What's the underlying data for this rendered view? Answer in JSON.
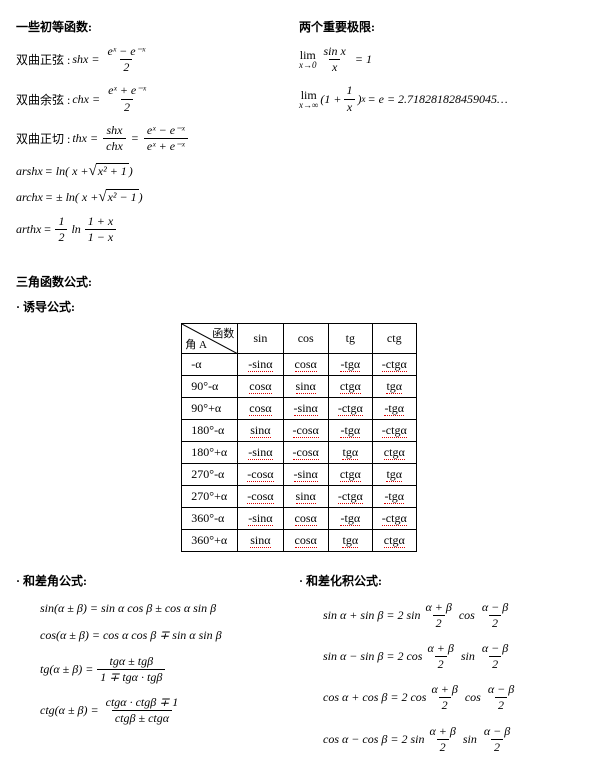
{
  "top": {
    "left_heading": "一些初等函数:",
    "right_heading": "两个重要极限:",
    "left_formulas": {
      "l1_label": "双曲正弦 : ",
      "l1_lhs": "shx",
      "l1_num": "eˣ − e⁻ˣ",
      "l1_den": "2",
      "l2_label": "双曲余弦 : ",
      "l2_lhs": "chx",
      "l2_num": "eˣ + e⁻ˣ",
      "l2_den": "2",
      "l3_label": "双曲正切 : ",
      "l3_lhs": "thx",
      "l3_num1": "shx",
      "l3_den1": "chx",
      "l3_num2": "eˣ − e⁻ˣ",
      "l3_den2": "eˣ + e⁻ˣ",
      "l4_lhs": "arshx",
      "l4_rhs_a": "= ln( x +",
      "l4_rad": "x² + 1",
      "l4_rhs_b": ")",
      "l5_lhs": "archx",
      "l5_rhs_a": "= ± ln( x +",
      "l5_rad": "x² − 1",
      "l5_rhs_b": ")",
      "l6_lhs": "arthx",
      "l6_eq": "=",
      "l6_f1num": "1",
      "l6_f1den": "2",
      "l6_mid": "ln",
      "l6_f2num": "1 + x",
      "l6_f2den": "1 − x"
    },
    "right_formulas": {
      "r1_lim": "lim",
      "r1_sub": "x→0",
      "r1_num": "sin x",
      "r1_den": "x",
      "r1_eq": "= 1",
      "r2_lim": "lim",
      "r2_sub": "x→∞",
      "r2_a": "(1 +",
      "r2_num": "1",
      "r2_den": "x",
      "r2_b": ")",
      "r2_sup": "x",
      "r2_eq": "= e = 2.718281828459045…"
    }
  },
  "section2": {
    "h1": "三角函数公式:",
    "h2": "· 诱导公式:",
    "diag_top": "函数",
    "diag_bot": "角 A",
    "cols": [
      "sin",
      "cos",
      "tg",
      "ctg"
    ],
    "rows": [
      {
        "a": "-α",
        "c": [
          "-sinα",
          "cosα",
          "-tgα",
          "-ctgα"
        ]
      },
      {
        "a": "90°-α",
        "c": [
          "cosα",
          "sinα",
          "ctgα",
          "tgα"
        ]
      },
      {
        "a": "90°+α",
        "c": [
          "cosα",
          "-sinα",
          "-ctgα",
          "-tgα"
        ]
      },
      {
        "a": "180°-α",
        "c": [
          "sinα",
          "-cosα",
          "-tgα",
          "-ctgα"
        ]
      },
      {
        "a": "180°+α",
        "c": [
          "-sinα",
          "-cosα",
          "tgα",
          "ctgα"
        ]
      },
      {
        "a": "270°-α",
        "c": [
          "-cosα",
          "-sinα",
          "ctgα",
          "tgα"
        ]
      },
      {
        "a": "270°+α",
        "c": [
          "-cosα",
          "sinα",
          "-ctgα",
          "-tgα"
        ]
      },
      {
        "a": "360°-α",
        "c": [
          "-sinα",
          "cosα",
          "-tgα",
          "-ctgα"
        ]
      },
      {
        "a": "360°+α",
        "c": [
          "sinα",
          "cosα",
          "tgα",
          "ctgα"
        ]
      }
    ]
  },
  "section3": {
    "left_h": "· 和差角公式:",
    "right_h": "· 和差化积公式:",
    "left": {
      "l1": "sin(α ± β) = sin α cos β ± cos α sin β",
      "l2": "cos(α ± β) = cos α cos β ∓ sin α sin β",
      "l3_lhs": "tg(α ± β) =",
      "l3_num": "tgα ± tgβ",
      "l3_den": "1 ∓ tgα · tgβ",
      "l4_lhs": "ctg(α ± β) =",
      "l4_num": "ctgα · ctgβ ∓ 1",
      "l4_den": "ctgβ ± ctgα"
    },
    "right": {
      "r1_lhs": "sin α + sin β = 2 sin",
      "r1_n1": "α + β",
      "r1_d1": "2",
      "r1_mid": "cos",
      "r1_n2": "α − β",
      "r1_d2": "2",
      "r2_lhs": "sin α − sin β = 2 cos",
      "r2_n1": "α + β",
      "r2_d1": "2",
      "r2_mid": "sin",
      "r2_n2": "α − β",
      "r2_d2": "2",
      "r3_lhs": "cos α + cos β = 2 cos",
      "r3_n1": "α + β",
      "r3_d1": "2",
      "r3_mid": "cos",
      "r3_n2": "α − β",
      "r3_d2": "2",
      "r4_lhs": "cos α − cos β = 2 sin",
      "r4_n1": "α + β",
      "r4_d1": "2",
      "r4_mid": "sin",
      "r4_n2": "α − β",
      "r4_d2": "2"
    }
  }
}
